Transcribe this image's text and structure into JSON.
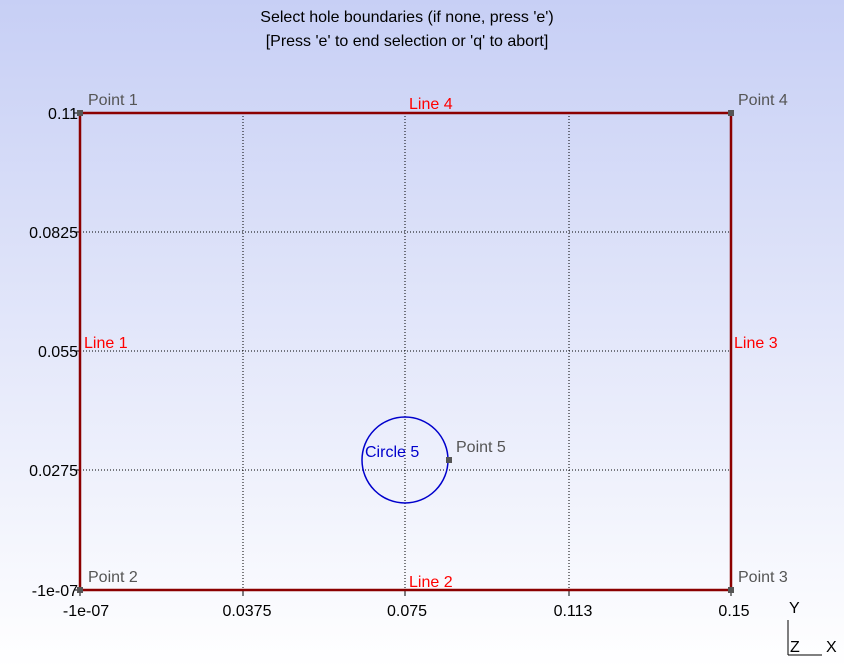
{
  "title": {
    "line1": "Select hole boundaries (if none, press 'e')",
    "line2": "[Press 'e' to end selection or 'q' to abort]"
  },
  "axes": {
    "x_ticks": [
      "-1e-07",
      "0.0375",
      "0.075",
      "0.113",
      "0.15"
    ],
    "y_ticks": [
      "0.11",
      "0.0825",
      "0.055",
      "0.0275",
      "-1e-07"
    ]
  },
  "entities": {
    "points": [
      "Point 1",
      "Point 2",
      "Point 3",
      "Point 4",
      "Point 5"
    ],
    "lines": [
      "Line 1",
      "Line 2",
      "Line 3",
      "Line 4"
    ],
    "circle": "Circle 5"
  },
  "triad": {
    "y": "Y",
    "z": "Z",
    "x": "X"
  }
}
